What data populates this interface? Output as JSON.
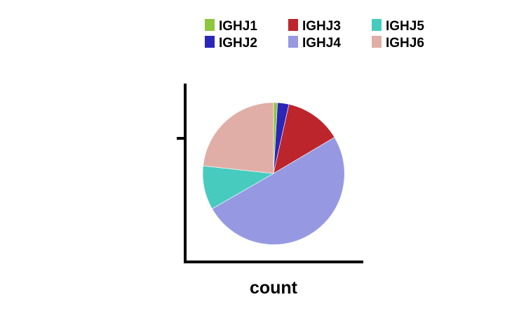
{
  "chart_data": {
    "type": "pie",
    "title": "",
    "xlabel": "count",
    "ylabel": "",
    "legend_position": "top",
    "start": "top-clockwise",
    "slices": [
      {
        "name": "IGHJ1",
        "value": 0.9,
        "color": "#8dc63f"
      },
      {
        "name": "IGHJ2",
        "value": 2.6,
        "color": "#2b26b8"
      },
      {
        "name": "IGHJ3",
        "value": 13.0,
        "color": "#bd252d"
      },
      {
        "name": "IGHJ4",
        "value": 50.2,
        "color": "#9699e2"
      },
      {
        "name": "IGHJ5",
        "value": 10.0,
        "color": "#47cbbf"
      },
      {
        "name": "IGHJ6",
        "value": 23.3,
        "color": "#e0aea6"
      }
    ]
  }
}
